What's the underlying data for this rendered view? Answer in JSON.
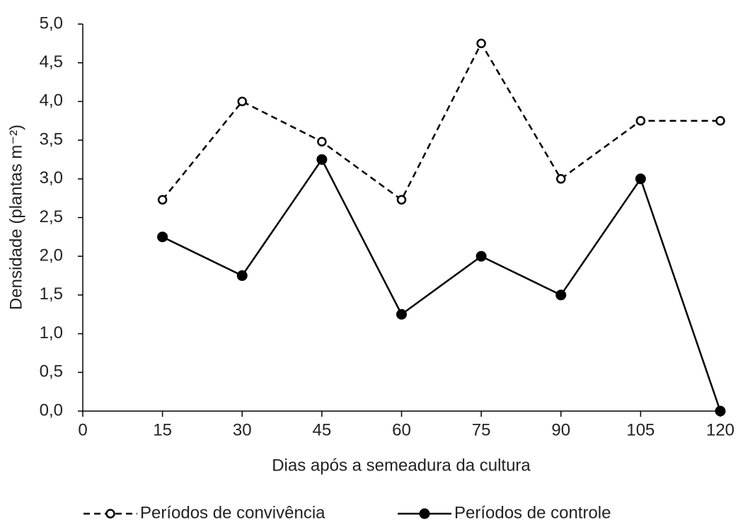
{
  "chart_data": {
    "type": "line",
    "xlabel": "Dias após a semeadura da cultura",
    "ylabel": "Densidade (plantas m⁻²)",
    "x": [
      15,
      30,
      45,
      60,
      75,
      90,
      105,
      120
    ],
    "series": [
      {
        "name": "Períodos de convivência",
        "color": "#000000",
        "linestyle": "dashed",
        "marker": "open",
        "values": [
          2.73,
          4.0,
          3.48,
          2.73,
          4.75,
          3.0,
          3.75,
          3.75
        ]
      },
      {
        "name": "Períodos de controle",
        "color": "#000000",
        "linestyle": "solid",
        "marker": "filled",
        "values": [
          2.25,
          1.75,
          3.25,
          1.25,
          2.0,
          1.5,
          3.0,
          0.0
        ]
      }
    ],
    "xlim": [
      0,
      120
    ],
    "xticks": [
      0,
      15,
      30,
      45,
      60,
      75,
      90,
      105,
      120
    ],
    "ylim": [
      0,
      5
    ],
    "yticks": [
      {
        "value": 0,
        "label": "0,0"
      },
      {
        "value": 0.5,
        "label": "0,5"
      },
      {
        "value": 1,
        "label": "1,0"
      },
      {
        "value": 1.5,
        "label": "1,5"
      },
      {
        "value": 2,
        "label": "2,0"
      },
      {
        "value": 2.5,
        "label": "2,5"
      },
      {
        "value": 3,
        "label": "3,0"
      },
      {
        "value": 3.5,
        "label": "3,5"
      },
      {
        "value": 4,
        "label": "4,0"
      },
      {
        "value": 4.5,
        "label": "4,5"
      },
      {
        "value": 5,
        "label": "5,0"
      }
    ],
    "grid": false,
    "legend": "bottom"
  }
}
